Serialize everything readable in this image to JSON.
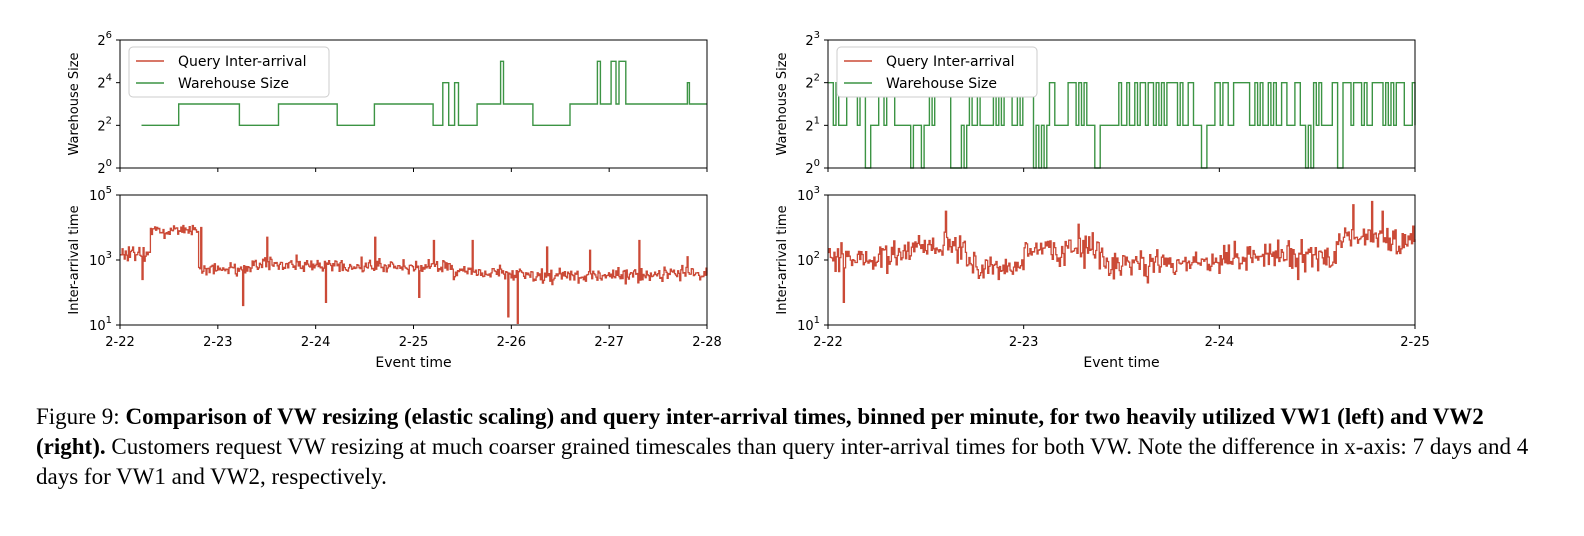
{
  "figure": {
    "caption_prefix": "Figure 9:",
    "caption_bold": "Comparison of VW resizing (elastic scaling) and query inter-arrival times, binned per minute, for two heavily utilized VW1 (left) and VW2 (right).",
    "caption_rest": "Customers request VW resizing at much coarser grained timescales than query inter-arrival times for both VW. Note the difference in x-axis: 7 days and 4 days for VW1 and VW2, respectively."
  },
  "colors": {
    "interarrival": "#cb4a37",
    "warehouse": "#3c9444",
    "axis": "#000000"
  },
  "chart_data": [
    {
      "panel": "VW1",
      "type": "line",
      "step": true,
      "xlabel": "Event time",
      "xticks": [
        "2-22",
        "2-23",
        "2-24",
        "2-25",
        "2-26",
        "2-27",
        "2-28"
      ],
      "xlim_days": [
        0,
        6
      ],
      "legend": {
        "placement": "upper-left",
        "entries": [
          "Query Inter-arrival",
          "Warehouse Size"
        ]
      },
      "top": {
        "ylabel": "Warehouse Size",
        "yscale": "log2",
        "ylim_exp": [
          0,
          6
        ],
        "yticks": [
          {
            "base": "2",
            "exp": "0"
          },
          {
            "base": "2",
            "exp": "2"
          },
          {
            "base": "2",
            "exp": "4"
          },
          {
            "base": "2",
            "exp": "6"
          }
        ],
        "series": {
          "points": [
            [
              0.22,
              2
            ],
            [
              0.6,
              3
            ],
            [
              1.22,
              2
            ],
            [
              1.62,
              3
            ],
            [
              2.22,
              2
            ],
            [
              2.6,
              3
            ],
            [
              3.2,
              2
            ],
            [
              3.3,
              4
            ],
            [
              3.36,
              2
            ],
            [
              3.42,
              4
            ],
            [
              3.46,
              2
            ],
            [
              3.65,
              3
            ],
            [
              3.89,
              5
            ],
            [
              3.92,
              3
            ],
            [
              4.22,
              2
            ],
            [
              4.6,
              3
            ],
            [
              4.88,
              5
            ],
            [
              4.91,
              3
            ],
            [
              5.02,
              5
            ],
            [
              5.07,
              3
            ],
            [
              5.1,
              5
            ],
            [
              5.17,
              3
            ],
            [
              5.8,
              4
            ],
            [
              5.82,
              3
            ],
            [
              6.0,
              3
            ]
          ]
        }
      },
      "bottom": {
        "ylabel": "Inter-arrival time",
        "yscale": "log10",
        "ylim_exp": [
          1,
          5
        ],
        "yticks": [
          {
            "base": "10",
            "exp": "1"
          },
          {
            "base": "10",
            "exp": "3"
          },
          {
            "base": "10",
            "exp": "5"
          }
        ],
        "series": {
          "n_points": 560,
          "segments": [
            [
              0,
              0.3,
              3.2
            ],
            [
              0.3,
              0.8,
              3.9
            ],
            [
              0.8,
              1.3,
              2.7
            ],
            [
              1.3,
              2.2,
              2.85
            ],
            [
              2.2,
              3.4,
              2.8
            ],
            [
              3.4,
              4.2,
              2.6
            ],
            [
              4.2,
              5.0,
              2.5
            ],
            [
              5.0,
              6.0,
              2.55
            ]
          ],
          "spikes": [
            [
              0.22,
              2.4
            ],
            [
              0.55,
              4.05
            ],
            [
              0.83,
              4.0
            ],
            [
              1.25,
              1.6
            ],
            [
              1.5,
              3.7
            ],
            [
              2.1,
              1.7
            ],
            [
              2.6,
              3.7
            ],
            [
              3.05,
              1.85
            ],
            [
              3.2,
              3.6
            ],
            [
              3.6,
              3.6
            ],
            [
              3.96,
              1.25
            ],
            [
              4.06,
              1.05
            ],
            [
              4.36,
              3.4
            ],
            [
              4.8,
              3.3
            ],
            [
              5.3,
              3.6
            ],
            [
              5.8,
              3.1
            ]
          ]
        }
      }
    },
    {
      "panel": "VW2",
      "type": "line",
      "step": true,
      "xlabel": "Event time",
      "xticks": [
        "2-22",
        "2-23",
        "2-24",
        "2-25"
      ],
      "xlim_days": [
        0,
        3
      ],
      "legend": {
        "placement": "upper-left",
        "entries": [
          "Query Inter-arrival",
          "Warehouse Size"
        ]
      },
      "top": {
        "ylabel": "Warehouse Size",
        "yscale": "log2",
        "ylim_exp": [
          0,
          3
        ],
        "yticks": [
          {
            "base": "2",
            "exp": "0"
          },
          {
            "base": "2",
            "exp": "1"
          },
          {
            "base": "2",
            "exp": "2"
          },
          {
            "base": "2",
            "exp": "3"
          }
        ],
        "series": {
          "n_points": 220,
          "levels": [
            0,
            1,
            2
          ],
          "low_windows": [
            [
              0.19,
              0.21
            ],
            [
              0.42,
              0.5
            ],
            [
              0.62,
              0.7
            ],
            [
              1.05,
              1.12
            ],
            [
              1.35,
              1.43
            ],
            [
              1.9,
              1.97
            ],
            [
              2.42,
              2.48
            ],
            [
              2.6,
              2.63
            ]
          ]
        }
      },
      "bottom": {
        "ylabel": "Inter-arrival time",
        "yscale": "log10",
        "ylim_exp": [
          1,
          3
        ],
        "yticks": [
          {
            "base": "10",
            "exp": "1"
          },
          {
            "base": "10",
            "exp": "2"
          },
          {
            "base": "10",
            "exp": "3"
          }
        ],
        "series": {
          "n_points": 500,
          "segments": [
            [
              0,
              0.4,
              2.05
            ],
            [
              0.4,
              0.7,
              2.2
            ],
            [
              0.7,
              1.0,
              1.9
            ],
            [
              1.0,
              1.4,
              2.15
            ],
            [
              1.4,
              2.0,
              1.95
            ],
            [
              2.0,
              2.6,
              2.05
            ],
            [
              2.6,
              3.0,
              2.3
            ]
          ],
          "spikes": [
            [
              0.08,
              1.35
            ],
            [
              0.6,
              2.75
            ],
            [
              0.87,
              1.7
            ],
            [
              1.28,
              2.55
            ],
            [
              1.63,
              1.65
            ],
            [
              2.14,
              2.2
            ],
            [
              2.4,
              1.7
            ],
            [
              2.68,
              2.85
            ],
            [
              2.78,
              2.9
            ],
            [
              2.83,
              2.75
            ]
          ]
        }
      }
    }
  ]
}
